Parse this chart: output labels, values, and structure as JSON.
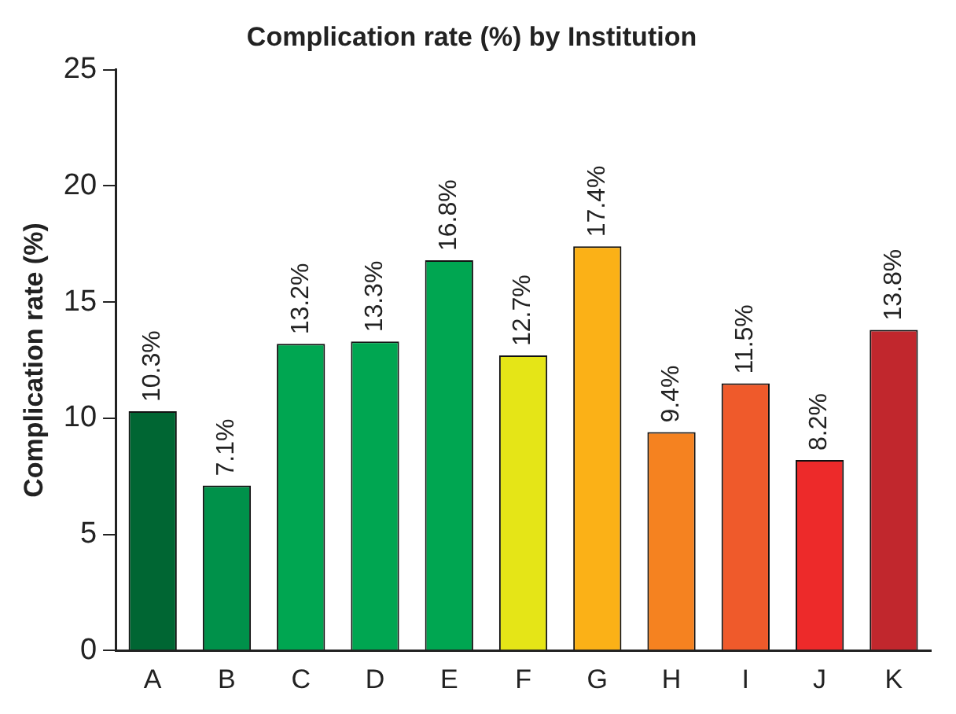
{
  "chart_data": {
    "type": "bar",
    "title": "Complication rate (%) by Institution",
    "ylabel": "Complication rate (%)",
    "categories": [
      "A",
      "B",
      "C",
      "D",
      "E",
      "F",
      "G",
      "H",
      "I",
      "J",
      "K"
    ],
    "values": [
      10.3,
      7.1,
      13.2,
      13.3,
      16.8,
      12.7,
      17.4,
      9.4,
      11.5,
      8.2,
      13.8
    ],
    "colors": [
      "#006633",
      "#00914a",
      "#00a651",
      "#00a651",
      "#00a651",
      "#e5e517",
      "#fbb117",
      "#f58220",
      "#ef5a2b",
      "#ed2a2a",
      "#c1272d"
    ],
    "value_labels": [
      "10.3%",
      "7.1%",
      "13.2%",
      "13.3%",
      "16.8%",
      "12.7%",
      "17.4%",
      "9.4%",
      "11.5%",
      "8.2%",
      "13.8%"
    ],
    "ylim": [
      0,
      25
    ],
    "yticks": [
      0,
      5,
      10,
      15,
      20,
      25
    ],
    "grid": false,
    "legend": false
  }
}
